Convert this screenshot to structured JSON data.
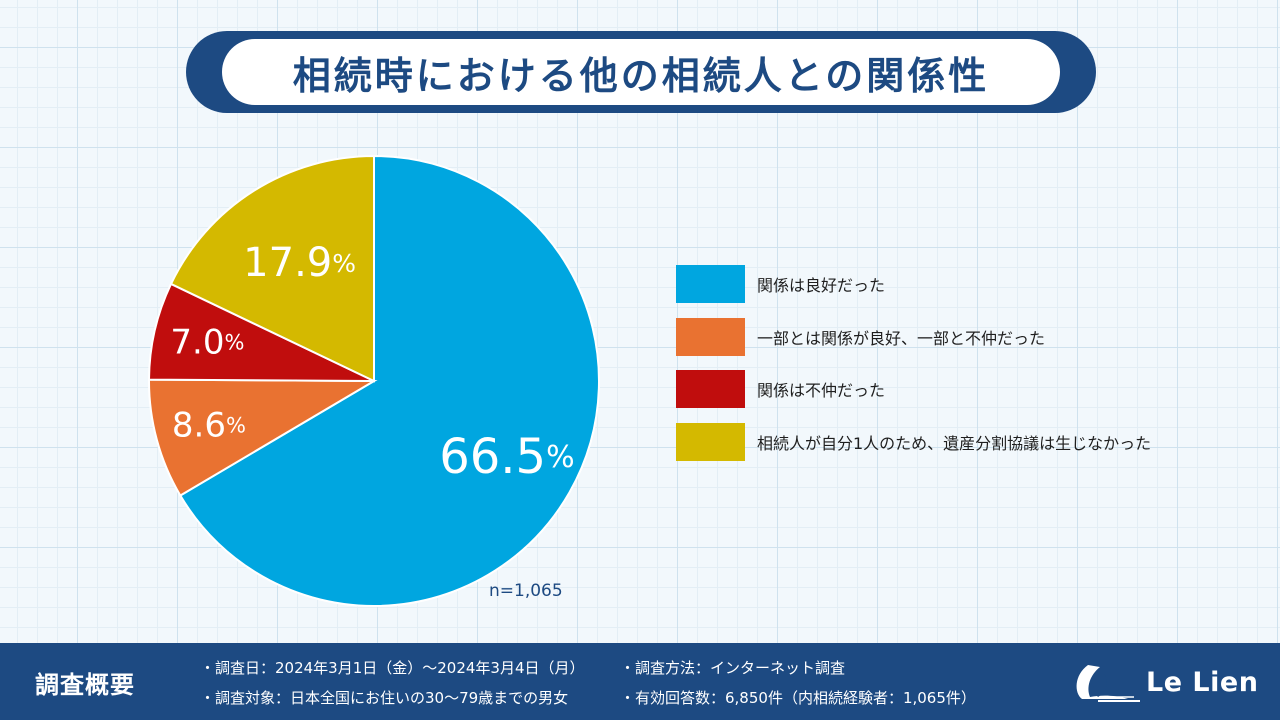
{
  "title": "相続時における他の相続人との関係性",
  "chart_data": {
    "type": "pie",
    "title": "相続時における他の相続人との関係性",
    "categories": [
      "関係は良好だった",
      "一部とは関係が良好、一部と不仲だった",
      "関係は不仲だった",
      "相続人が自分1人のため、遺産分割協議は生じなかった"
    ],
    "values": [
      66.5,
      8.6,
      7.0,
      17.9
    ],
    "value_labels": [
      "66.5",
      "8.6",
      "7.0",
      "17.9"
    ],
    "unit": "%",
    "colors": [
      "#00a6e0",
      "#e97231",
      "#c00d0d",
      "#d4b900"
    ],
    "start": "12 o'clock",
    "direction": "clockwise",
    "legend_position": "right",
    "sample_size": "n=1,065"
  },
  "footer": {
    "heading": "調査概要",
    "lines": [
      "・調査日：2024年3月1日（金）～2024年3月4日（月）",
      "・調査方法：インターネット調査",
      "・調査対象：日本全国にお住いの30～79歳までの男女",
      "・有効回答数：6,850件（内相続経験者：1,065件）"
    ]
  },
  "logo": {
    "text": "Le Lien"
  }
}
